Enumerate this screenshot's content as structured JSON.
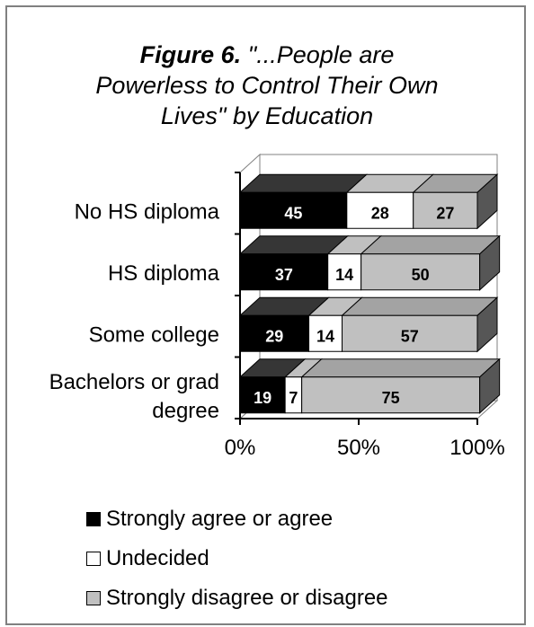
{
  "chart_data": {
    "type": "bar",
    "orientation": "horizontal",
    "stacked": true,
    "percent_stacked": true,
    "three_d": true,
    "title_prefix": "Figure 6.",
    "title_lines": [
      "\"...People are",
      "Powerless to Control Their Own",
      "Lives\" by Education"
    ],
    "categories": [
      "No HS diploma",
      "HS diploma",
      "Some college",
      "Bachelors or grad degree"
    ],
    "category_label_lines": [
      [
        "No HS diploma"
      ],
      [
        "HS diploma"
      ],
      [
        "Some college"
      ],
      [
        "Bachelors or grad",
        "degree"
      ]
    ],
    "series": [
      {
        "name": "Strongly agree or agree",
        "values": [
          45,
          37,
          29,
          19
        ],
        "color": "#000000",
        "label_color": "#ffffff"
      },
      {
        "name": "Undecided",
        "values": [
          28,
          14,
          14,
          7
        ],
        "color": "#ffffff",
        "label_color": "#000000"
      },
      {
        "name": "Strongly disagree or disagree",
        "values": [
          27,
          50,
          57,
          75
        ],
        "color": "#c0c0c0",
        "label_color": "#000000"
      }
    ],
    "xlim": [
      0,
      100
    ],
    "x_ticks": [
      0,
      50,
      100
    ],
    "x_tick_labels": [
      "0%",
      "50%",
      "100%"
    ],
    "legend_position": "bottom"
  }
}
